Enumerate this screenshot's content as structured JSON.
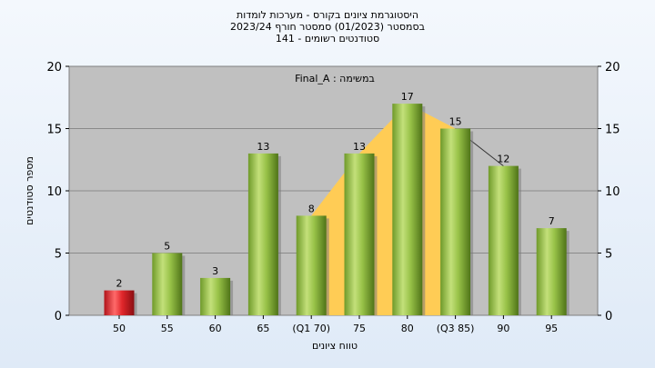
{
  "titles": {
    "line1": "היסטוגרמת ציונים בקורס - מערכות לומדות",
    "line2": "בסמסטר  (01/2023)  סמסטר חורף 2023/24",
    "line3": "סטודנטים רשומים - 141"
  },
  "chart_data": {
    "type": "bar",
    "categories": [
      "50",
      "55",
      "60",
      "65",
      "(Q1 70)",
      "75",
      "80",
      "(Q3 85)",
      "90",
      "95"
    ],
    "values": [
      2,
      5,
      3,
      13,
      8,
      13,
      17,
      15,
      12,
      7
    ],
    "bar_colors": [
      "#e0262a",
      "#8cbb3c",
      "#8cbb3c",
      "#8cbb3c",
      "#8cbb3c",
      "#8cbb3c",
      "#8cbb3c",
      "#8cbb3c",
      "#8cbb3c",
      "#8cbb3c"
    ],
    "area_color": "#ffcc55",
    "plot_background": "#c0c0c0",
    "xlabel": "טווח ציונים",
    "ylabel": "מספר סטודנטים",
    "annotation": "במשימה : Final_A",
    "yticks": [
      0,
      5,
      10,
      15,
      20
    ],
    "ylim": [
      0,
      20
    ],
    "grid": true
  }
}
